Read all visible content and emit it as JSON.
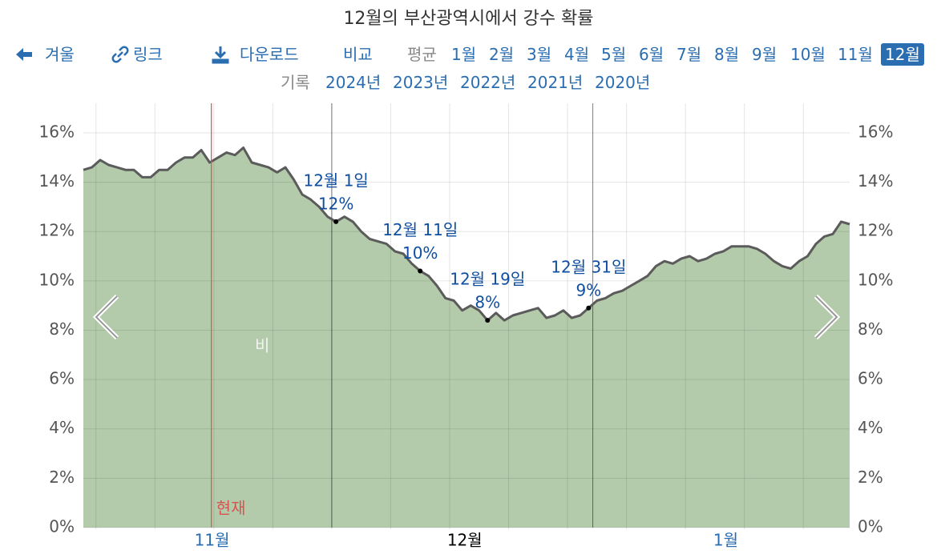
{
  "nav": {
    "back": "겨울",
    "link": "링크",
    "download": "다운로드",
    "compare": "비교",
    "average": "평균",
    "months": [
      "1월",
      "2월",
      "3월",
      "4월",
      "5월",
      "6월",
      "7월",
      "8월",
      "9월",
      "10월",
      "11월",
      "12월"
    ],
    "history": "기록",
    "years": [
      "2024년",
      "2023년",
      "2022년",
      "2021년",
      "2020년"
    ]
  },
  "chart_data": {
    "type": "area",
    "title": "12월의 부산광역시에서 강수 확률",
    "categories": [
      null,
      null,
      null,
      null,
      null,
      null,
      null,
      null,
      null,
      null,
      null,
      null,
      null,
      null,
      null,
      "11월",
      null,
      null,
      null,
      null,
      null,
      null,
      null,
      null,
      null,
      null,
      null,
      null,
      null,
      null,
      null,
      null,
      null,
      null,
      null,
      null,
      null,
      null,
      null,
      null,
      null,
      null,
      null,
      null,
      null,
      "12월",
      null,
      null,
      null,
      null,
      null,
      null,
      null,
      null,
      null,
      null,
      null,
      null,
      null,
      null,
      null,
      null,
      null,
      null,
      null,
      null,
      null,
      null,
      null,
      null,
      null,
      null,
      null,
      null,
      null,
      null,
      "1월",
      null,
      null,
      null,
      null,
      null,
      null,
      null,
      null,
      null,
      null,
      null,
      null,
      null,
      null,
      null
    ],
    "series": [
      {
        "name": "비",
        "color": "#b3cbaa",
        "line_color": "#5b5b5b",
        "values": [
          14.5,
          14.6,
          14.9,
          14.7,
          14.6,
          14.5,
          14.5,
          14.2,
          14.2,
          14.5,
          14.5,
          14.8,
          15.0,
          15.0,
          15.3,
          14.8,
          15.0,
          15.2,
          15.1,
          15.4,
          14.8,
          14.7,
          14.6,
          14.4,
          14.6,
          14.1,
          13.5,
          13.3,
          13.0,
          12.6,
          12.4,
          12.6,
          12.4,
          12.0,
          11.7,
          11.6,
          11.5,
          11.2,
          11.1,
          10.7,
          10.4,
          10.2,
          9.8,
          9.3,
          9.2,
          8.8,
          9.0,
          8.8,
          8.4,
          8.7,
          8.4,
          8.6,
          8.7,
          8.8,
          8.9,
          8.5,
          8.6,
          8.8,
          8.5,
          8.6,
          8.9,
          9.2,
          9.3,
          9.5,
          9.6,
          9.8,
          10.0,
          10.2,
          10.6,
          10.8,
          10.7,
          10.9,
          11.0,
          10.8,
          10.9,
          11.1,
          11.2,
          11.4,
          11.4,
          11.4,
          11.3,
          11.1,
          10.8,
          10.6,
          10.5,
          10.8,
          11.0,
          11.5,
          11.8,
          11.9,
          12.4,
          12.3
        ],
        "value_labels": [
          null,
          null,
          null,
          null,
          null,
          null,
          null,
          null,
          null,
          null,
          null,
          null,
          null,
          null,
          null,
          null,
          null,
          null,
          null,
          null,
          null,
          null,
          null,
          null,
          null,
          null,
          null,
          null,
          null,
          null,
          "12%",
          null,
          null,
          null,
          null,
          null,
          null,
          null,
          null,
          null,
          "10%",
          null,
          null,
          null,
          null,
          null,
          null,
          null,
          "8%",
          null,
          null,
          null,
          null,
          null,
          null,
          null,
          null,
          null,
          null,
          null,
          "9%",
          null,
          null,
          null,
          null,
          null,
          null,
          null,
          null,
          null,
          null,
          null,
          null,
          null,
          null,
          null,
          null,
          null,
          null,
          null,
          null,
          null,
          null,
          null,
          null,
          null,
          null,
          null,
          null,
          null,
          null,
          null
        ],
        "annotations": [
          null,
          null,
          null,
          null,
          null,
          null,
          null,
          null,
          null,
          null,
          null,
          null,
          null,
          null,
          null,
          null,
          null,
          null,
          null,
          null,
          null,
          null,
          null,
          null,
          null,
          null,
          null,
          null,
          null,
          null,
          "12월 1일",
          null,
          null,
          null,
          null,
          null,
          null,
          null,
          null,
          null,
          "12월 11일",
          null,
          null,
          null,
          null,
          null,
          null,
          null,
          "12월 19일",
          null,
          null,
          null,
          null,
          null,
          null,
          null,
          null,
          null,
          null,
          null,
          "12월 31일",
          null,
          null,
          null,
          null,
          null,
          null,
          null,
          null,
          null,
          null,
          null,
          null,
          null,
          null,
          null,
          null,
          null,
          null,
          null,
          null,
          null,
          null,
          null,
          null,
          null,
          null,
          null,
          null,
          null,
          null,
          null
        ]
      }
    ],
    "ylim": [
      0,
      17.2
    ],
    "yticks": [
      {
        "value": 0,
        "label": "0%"
      },
      {
        "value": 2,
        "label": "2%"
      },
      {
        "value": 4,
        "label": "4%"
      },
      {
        "value": 6,
        "label": "6%"
      },
      {
        "value": 8,
        "label": "8%"
      },
      {
        "value": 10,
        "label": "10%"
      },
      {
        "value": 12,
        "label": "12%"
      },
      {
        "value": 14,
        "label": "14%"
      },
      {
        "value": 16,
        "label": "16%"
      }
    ],
    "grid": true,
    "now_label": "현재"
  }
}
